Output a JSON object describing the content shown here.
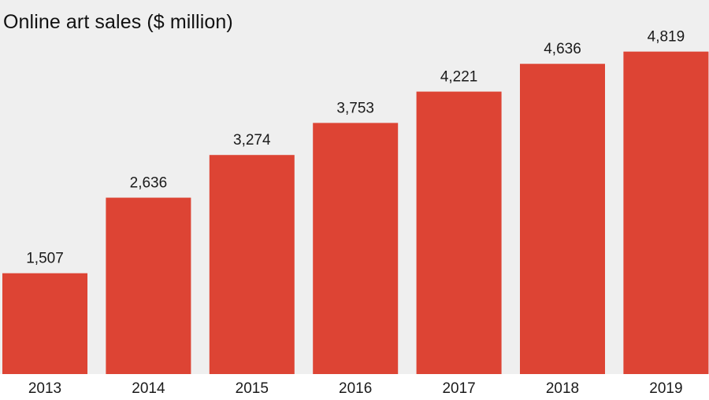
{
  "title": "Online art sales ($ million)",
  "chart_data": {
    "type": "bar",
    "title": "Online art sales ($ million)",
    "categories": [
      "2013",
      "2014",
      "2015",
      "2016",
      "2017",
      "2018",
      "2019"
    ],
    "values": [
      1507,
      2636,
      3274,
      3753,
      4221,
      4636,
      4819
    ],
    "value_labels": [
      "1,507",
      "2,636",
      "3,274",
      "3,753",
      "4,221",
      "4,636",
      "4,819"
    ],
    "xlabel": "",
    "ylabel": "",
    "ylim": [
      0,
      5590
    ],
    "grid": false,
    "legend": "none",
    "bar_color": "#dd4434",
    "background_color": "#efefef"
  }
}
